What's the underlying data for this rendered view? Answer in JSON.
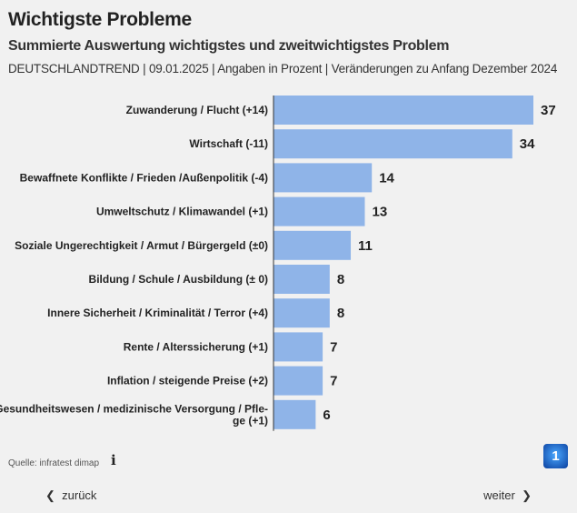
{
  "header": {
    "title": "Wichtigste Probleme",
    "subtitle": "Summierte Auswertung wichtigstes und zweitwichtigstes Problem",
    "meta": "DEUTSCHLANDTREND | 09.01.2025 | Angaben in Prozent | Veränderungen zu Anfang Dezember 2024"
  },
  "chart_data": {
    "type": "bar",
    "orientation": "horizontal",
    "title": "Wichtigste Probleme",
    "color": "#8fb4e8",
    "categories": [
      [
        "Zuwanderung / Flucht (+14)"
      ],
      [
        "Wirtschaft (-11)"
      ],
      [
        "Bewaffnete Konflikte / Frieden /Außenpolitik (-4)"
      ],
      [
        "Umweltschutz / Klimawandel (+1)"
      ],
      [
        "Soziale Ungerechtigkeit / Armut / Bürgergeld (±0)"
      ],
      [
        "Bildung / Schule / Ausbildung (± 0)"
      ],
      [
        "Innere Sicherheit / Kriminalität / Terror (+4)"
      ],
      [
        "Rente / Alterssicherung (+1)"
      ],
      [
        "Inflation / steigende Preise (+2)"
      ],
      [
        "Gesundheitswesen / medizinische Versorgung / Pfle-",
        "ge (+1)"
      ]
    ],
    "values": [
      37,
      34,
      14,
      13,
      11,
      8,
      8,
      7,
      7,
      6
    ],
    "xlim": [
      0,
      37
    ],
    "grid": false
  },
  "footer": {
    "source": "Quelle: infratest dimap",
    "info_icon": "info-icon",
    "logo": "tagesschau-logo",
    "logo_text": "1",
    "back": "zurück",
    "next": "weiter"
  }
}
